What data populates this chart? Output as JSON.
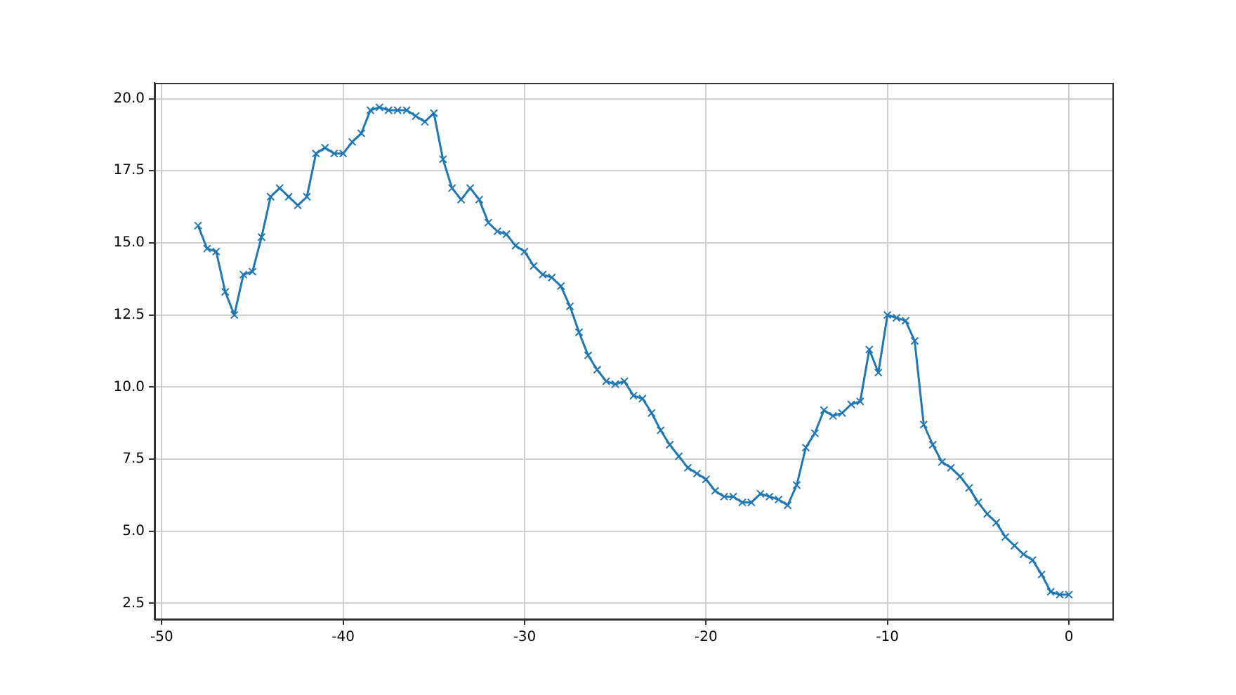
{
  "chart_data": {
    "type": "line",
    "x": [
      -48,
      -47.5,
      -47,
      -46.5,
      -46,
      -45.5,
      -45,
      -44.5,
      -44,
      -43.5,
      -43,
      -42.5,
      -42,
      -41.5,
      -41,
      -40.5,
      -40,
      -39.5,
      -39,
      -38.5,
      -38,
      -37.5,
      -37,
      -36.5,
      -36,
      -35.5,
      -35,
      -34.5,
      -34,
      -33.5,
      -33,
      -32.5,
      -32,
      -31.5,
      -31,
      -30.5,
      -30,
      -29.5,
      -29,
      -28.5,
      -28,
      -27.5,
      -27,
      -26.5,
      -26,
      -25.5,
      -25,
      -24.5,
      -24,
      -23.5,
      -23,
      -22.5,
      -22,
      -21.5,
      -21,
      -20.5,
      -20,
      -19.5,
      -19,
      -18.5,
      -18,
      -17.5,
      -17,
      -16.5,
      -16,
      -15.5,
      -15,
      -14.5,
      -14,
      -13.5,
      -13,
      -12.5,
      -12,
      -11.5,
      -11,
      -10.5,
      -10,
      -9.5,
      -9,
      -8.5,
      -8,
      -7.5,
      -7,
      -6.5,
      -6,
      -5.5,
      -5,
      -4.5,
      -4,
      -3.5,
      -3,
      -2.5,
      -2,
      -1.5,
      -1,
      -0.5,
      0
    ],
    "series": [
      {
        "color": "#1f77b4",
        "values": [
          15.6,
          14.8,
          14.7,
          13.3,
          12.5,
          13.9,
          14.0,
          15.2,
          16.6,
          16.9,
          16.6,
          16.3,
          16.6,
          18.1,
          18.3,
          18.1,
          18.1,
          18.5,
          18.8,
          19.6,
          19.7,
          19.6,
          19.6,
          19.6,
          19.4,
          19.2,
          19.5,
          17.9,
          16.9,
          16.5,
          16.9,
          16.5,
          15.7,
          15.4,
          15.3,
          14.9,
          14.7,
          14.2,
          13.9,
          13.8,
          13.5,
          12.8,
          11.9,
          11.1,
          10.6,
          10.2,
          10.1,
          10.2,
          9.7,
          9.6,
          9.1,
          8.5,
          8.0,
          7.6,
          7.2,
          7.0,
          6.8,
          6.4,
          6.2,
          6.2,
          6.0,
          6.0,
          6.3,
          6.2,
          6.1,
          5.9,
          6.6,
          7.9,
          8.4,
          9.2,
          9.0,
          9.1,
          9.4,
          9.5,
          11.3,
          10.5,
          12.5,
          12.4,
          12.3,
          11.6,
          8.7,
          8.0,
          7.4,
          7.2,
          6.9,
          6.5,
          6.0,
          5.6,
          5.3,
          4.8,
          4.5,
          4.2,
          4.0,
          3.5,
          2.9,
          2.8,
          2.8
        ]
      }
    ],
    "xlim": [
      -50.4,
      2.4
    ],
    "ylim": [
      1.95,
      20.55
    ],
    "xticks": [
      -50,
      -40,
      -30,
      -20,
      -10,
      0
    ],
    "yticks": [
      2.5,
      {
        "value": 5,
        "label": "5.0"
      },
      7.5,
      {
        "value": 10,
        "label": "10.0"
      },
      12.5,
      {
        "value": 15,
        "label": "15.0"
      },
      17.5,
      {
        "value": 20,
        "label": "20.0"
      }
    ],
    "grid": true,
    "marker": "cross",
    "line_style": "solid"
  }
}
